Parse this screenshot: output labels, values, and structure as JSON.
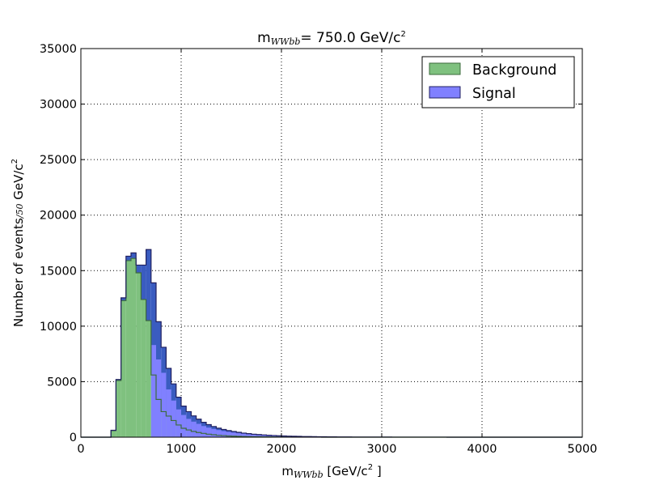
{
  "chart_data": {
    "type": "bar",
    "histogram": true,
    "title": {
      "base": "m",
      "sub": "WWbb",
      "rest": "= 750.0 GeV/c",
      "sup": "2"
    },
    "xlabel": {
      "base": "m",
      "sub": "WWbb",
      "rest": " [GeV/c",
      "sup": "2",
      "tail": " ]"
    },
    "ylabel": {
      "pre": "Number of events",
      "math": "/50",
      "rest": " GeV/c",
      "sup": "2"
    },
    "xlim": [
      0,
      5000
    ],
    "ylim": [
      0,
      35000
    ],
    "xticks": [
      "0",
      "1000",
      "2000",
      "3000",
      "4000",
      "5000"
    ],
    "yticks": [
      "0",
      "5000",
      "10000",
      "15000",
      "20000",
      "25000",
      "30000",
      "35000"
    ],
    "grid": true,
    "legend_position": "top-right",
    "bin_width": 50,
    "bin_start": 0,
    "stacked": true,
    "series": [
      {
        "name": "Background",
        "color": "#7fc17f",
        "edge": "#3d6b3d",
        "values": [
          0,
          0,
          0,
          0,
          0,
          0,
          600,
          5100,
          12300,
          15900,
          16100,
          14800,
          12400,
          10500,
          5600,
          3400,
          2300,
          1900,
          1500,
          1100,
          800,
          650,
          520,
          420,
          340,
          270,
          220,
          170,
          140,
          110,
          90,
          75,
          60,
          50,
          40,
          35,
          30,
          25,
          20,
          15,
          12,
          10,
          8,
          6,
          5,
          4,
          3,
          3,
          2,
          2,
          1,
          1,
          1,
          1,
          1,
          1,
          1,
          1,
          1,
          1,
          1,
          1,
          1,
          1,
          1,
          1,
          1,
          1,
          1,
          1,
          1,
          1,
          1,
          1,
          1,
          1,
          1,
          1,
          1,
          1,
          1,
          1,
          1,
          1,
          1,
          1,
          1,
          1,
          1,
          1,
          1,
          1,
          1,
          1,
          1,
          1,
          1,
          1,
          1,
          1
        ]
      },
      {
        "name": "Signal",
        "color": "#8080ff",
        "edge": "#202060",
        "stack_color": "#3a5cc0",
        "values": [
          0,
          0,
          0,
          0,
          0,
          0,
          20,
          100,
          250,
          400,
          500,
          700,
          3100,
          6400,
          8300,
          7000,
          5800,
          4300,
          3300,
          2500,
          2000,
          1650,
          1400,
          1200,
          1000,
          860,
          740,
          640,
          550,
          480,
          420,
          360,
          310,
          270,
          230,
          200,
          175,
          150,
          130,
          110,
          95,
          85,
          75,
          65,
          55,
          48,
          42,
          36,
          32,
          28,
          24,
          21,
          18,
          16,
          14,
          12,
          11,
          10,
          9,
          8,
          7,
          6,
          5,
          5,
          4,
          4,
          3,
          3,
          3,
          2,
          2,
          2,
          2,
          1,
          1,
          1,
          1,
          1,
          1,
          1,
          1,
          1,
          1,
          1,
          1,
          1,
          1,
          1,
          1,
          1,
          1,
          1,
          1,
          1,
          1,
          1,
          1,
          1,
          1,
          1
        ]
      }
    ]
  }
}
